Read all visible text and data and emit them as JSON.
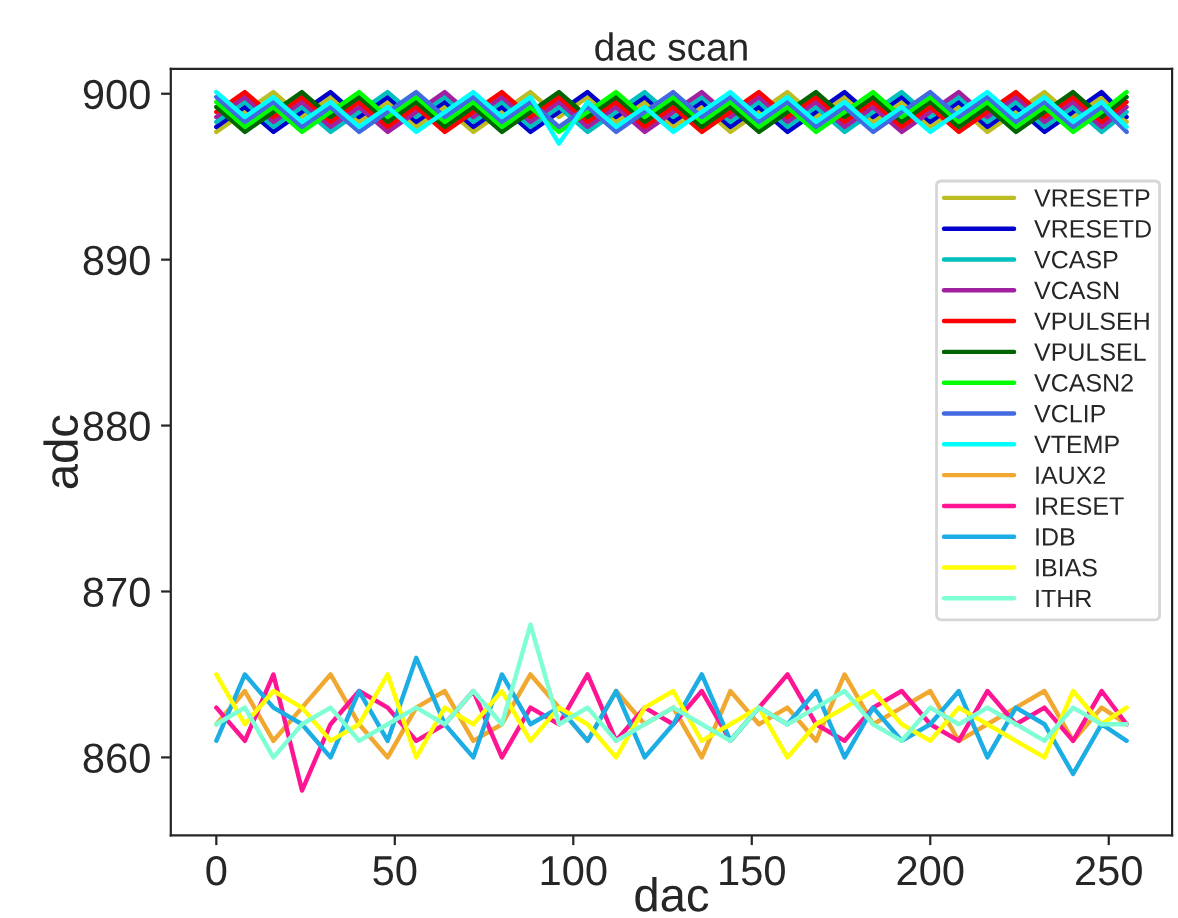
{
  "chart_data": {
    "type": "line",
    "title": "dac scan",
    "xlabel": "dac",
    "ylabel": "adc",
    "x": [
      0,
      8,
      16,
      24,
      32,
      40,
      48,
      56,
      64,
      72,
      80,
      88,
      96,
      104,
      112,
      120,
      128,
      136,
      144,
      152,
      160,
      168,
      176,
      184,
      192,
      200,
      208,
      216,
      224,
      232,
      240,
      248,
      255
    ],
    "xlim": [
      -12.75,
      267.75
    ],
    "xticks": [
      0,
      50,
      100,
      150,
      200,
      250
    ],
    "ylim": [
      855.3,
      901.5
    ],
    "yticks": [
      860,
      870,
      880,
      890,
      900
    ],
    "grid": false,
    "legend": "right",
    "marker": "none",
    "line_style": "solid",
    "series": [
      {
        "name": "VRESETP",
        "color": "#bcbd22",
        "values": [
          897.7,
          898.9,
          900.1,
          898.6,
          899.8,
          898.3,
          899.5,
          898.0,
          899.2,
          897.7,
          898.9,
          900.1,
          898.6,
          899.8,
          898.3,
          899.5,
          898.0,
          899.2,
          897.7,
          898.9,
          900.1,
          898.6,
          899.8,
          898.3,
          899.5,
          898.0,
          899.2,
          897.7,
          898.9,
          900.1,
          898.6,
          899.8,
          898.3
        ]
      },
      {
        "name": "VRESETD",
        "color": "#0000cd",
        "values": [
          898.0,
          899.2,
          897.7,
          898.9,
          900.1,
          898.6,
          899.8,
          898.3,
          899.5,
          898.0,
          899.2,
          897.7,
          898.9,
          900.1,
          898.6,
          899.8,
          898.3,
          899.5,
          898.0,
          899.2,
          897.7,
          898.9,
          900.1,
          898.6,
          899.8,
          898.3,
          899.5,
          898.0,
          899.2,
          897.7,
          898.9,
          900.1,
          898.6
        ]
      },
      {
        "name": "VCASP",
        "color": "#00bfbf",
        "values": [
          898.3,
          899.5,
          898.0,
          899.2,
          897.7,
          898.9,
          900.1,
          898.6,
          899.8,
          898.3,
          899.5,
          898.0,
          899.2,
          897.7,
          898.9,
          900.1,
          898.6,
          899.8,
          898.3,
          899.5,
          898.0,
          899.2,
          897.7,
          898.9,
          900.1,
          898.6,
          899.8,
          898.3,
          899.5,
          898.0,
          899.2,
          897.7,
          898.9
        ]
      },
      {
        "name": "VCASN",
        "color": "#a020a0",
        "values": [
          898.6,
          899.8,
          898.3,
          899.5,
          898.0,
          899.2,
          897.7,
          898.9,
          900.1,
          898.6,
          899.8,
          898.3,
          899.5,
          898.0,
          899.2,
          897.7,
          898.9,
          900.1,
          898.6,
          899.8,
          898.3,
          899.5,
          898.0,
          899.2,
          897.7,
          898.9,
          900.1,
          898.6,
          899.8,
          898.3,
          899.5,
          898.0,
          899.2
        ]
      },
      {
        "name": "VPULSEH",
        "color": "#ff0000",
        "values": [
          898.9,
          900.1,
          898.6,
          899.8,
          898.3,
          899.5,
          898.0,
          899.2,
          897.7,
          898.9,
          900.1,
          898.6,
          899.8,
          898.3,
          899.5,
          898.0,
          899.2,
          897.7,
          898.9,
          900.1,
          898.6,
          899.8,
          898.3,
          899.5,
          898.0,
          899.2,
          897.7,
          898.9,
          900.1,
          898.6,
          899.8,
          898.3,
          899.5
        ]
      },
      {
        "name": "VPULSEL",
        "color": "#006400",
        "values": [
          899.2,
          897.7,
          898.9,
          900.1,
          898.6,
          899.8,
          898.3,
          899.5,
          898.0,
          899.2,
          897.7,
          898.9,
          900.1,
          898.6,
          899.8,
          898.3,
          899.5,
          898.0,
          899.2,
          897.7,
          898.9,
          900.1,
          898.6,
          899.8,
          898.3,
          899.5,
          898.0,
          899.2,
          897.7,
          898.9,
          900.1,
          898.6,
          899.8
        ]
      },
      {
        "name": "VCASN2",
        "color": "#00ff00",
        "values": [
          899.5,
          898.0,
          899.2,
          897.7,
          898.9,
          900.1,
          898.6,
          899.8,
          898.3,
          899.5,
          898.0,
          899.2,
          897.7,
          898.9,
          900.1,
          898.6,
          899.8,
          898.3,
          899.5,
          898.0,
          899.2,
          897.7,
          898.9,
          900.1,
          898.6,
          899.8,
          898.3,
          899.5,
          898.0,
          899.2,
          897.7,
          898.9,
          900.1
        ]
      },
      {
        "name": "VCLIP",
        "color": "#4169e1",
        "values": [
          899.8,
          898.3,
          899.5,
          898.0,
          899.2,
          897.7,
          898.9,
          900.1,
          898.6,
          899.8,
          898.3,
          899.5,
          898.0,
          899.2,
          897.7,
          898.9,
          900.1,
          898.6,
          899.8,
          898.3,
          899.5,
          898.0,
          899.2,
          897.7,
          898.9,
          900.1,
          898.6,
          899.8,
          898.3,
          899.5,
          898.0,
          899.2,
          897.7
        ]
      },
      {
        "name": "VTEMP",
        "color": "#00ffff",
        "values": [
          900.1,
          898.6,
          899.8,
          898.3,
          899.5,
          898.0,
          899.2,
          897.7,
          898.9,
          900.1,
          898.6,
          899.8,
          897.0,
          899.5,
          898.0,
          899.2,
          897.7,
          898.9,
          900.1,
          898.6,
          899.8,
          898.3,
          899.5,
          898.0,
          899.2,
          897.7,
          898.9,
          900.1,
          898.6,
          899.8,
          898.3,
          899.5,
          898.0
        ]
      },
      {
        "name": "IAUX2",
        "color": "#f0a830",
        "values": [
          862,
          864,
          861,
          863,
          865,
          862,
          860,
          863,
          864,
          861,
          862,
          865,
          863,
          861,
          864,
          862,
          863,
          860,
          864,
          862,
          863,
          861,
          865,
          862,
          863,
          864,
          861,
          862,
          863,
          864,
          861,
          863,
          862
        ]
      },
      {
        "name": "IRESET",
        "color": "#ff1493",
        "values": [
          863,
          861,
          865,
          858,
          862,
          864,
          863,
          861,
          862,
          864,
          860,
          863,
          862,
          865,
          861,
          863,
          862,
          864,
          861,
          863,
          865,
          862,
          861,
          863,
          864,
          862,
          861,
          864,
          862,
          863,
          861,
          864,
          862
        ]
      },
      {
        "name": "IDB",
        "color": "#1cade4",
        "values": [
          861,
          865,
          863,
          862,
          860,
          864,
          861,
          866,
          862,
          860,
          865,
          862,
          863,
          861,
          864,
          860,
          862,
          865,
          861,
          863,
          862,
          864,
          860,
          863,
          861,
          862,
          864,
          860,
          863,
          862,
          859,
          862,
          861
        ]
      },
      {
        "name": "IBIAS",
        "color": "#ffff00",
        "values": [
          865,
          862,
          864,
          863,
          861,
          862,
          865,
          860,
          863,
          862,
          864,
          861,
          863,
          862,
          860,
          863,
          864,
          861,
          862,
          863,
          860,
          862,
          863,
          864,
          862,
          861,
          863,
          862,
          861,
          860,
          864,
          862,
          863
        ]
      },
      {
        "name": "ITHR",
        "color": "#7fffd4",
        "values": [
          862,
          863,
          860,
          862,
          863,
          861,
          862,
          863,
          862,
          864,
          862,
          868,
          862,
          863,
          861,
          862,
          863,
          862,
          861,
          863,
          862,
          863,
          864,
          862,
          861,
          863,
          862,
          863,
          862,
          861,
          863,
          862,
          862
        ]
      }
    ]
  }
}
